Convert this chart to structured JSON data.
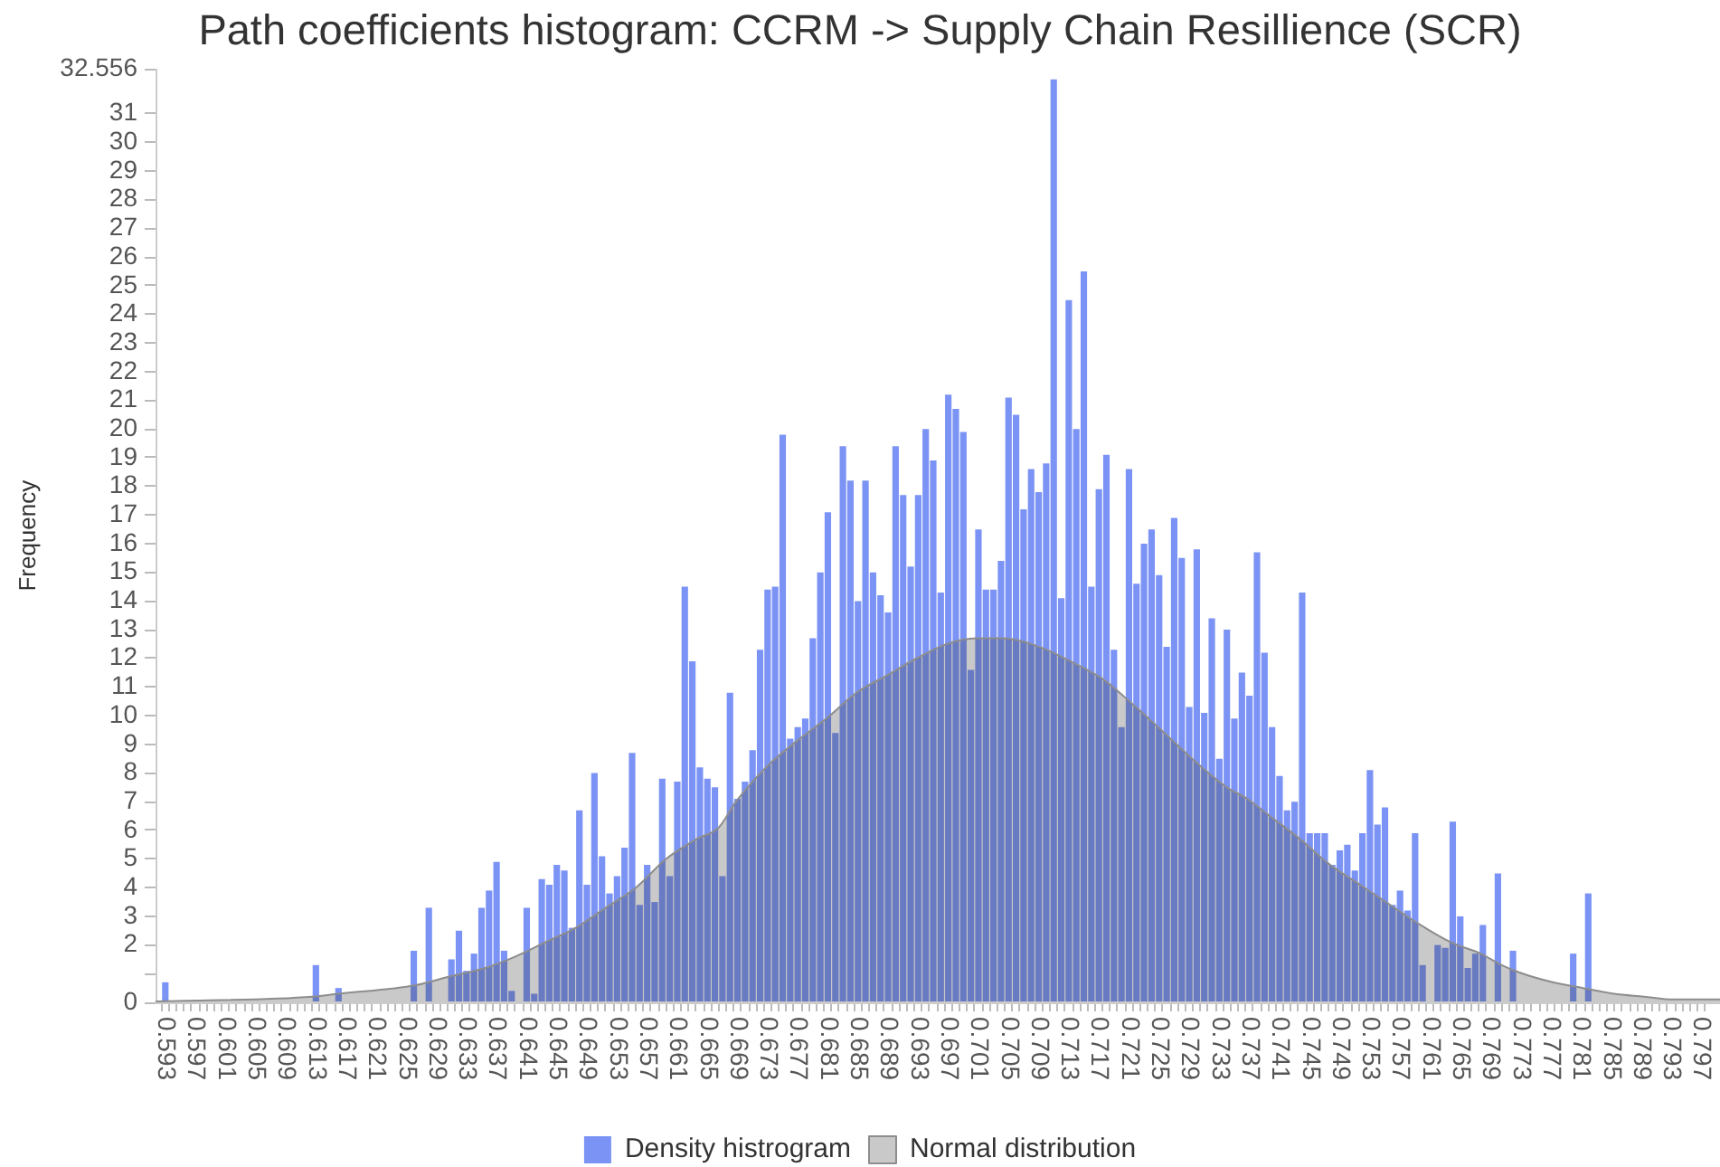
{
  "chart_data": {
    "type": "histogram",
    "title": "Path coefficients histogram: CCRM -> Supply Chain Resillience (SCR)",
    "ylabel": "Frequency",
    "bins": [
      0.5925,
      0.5935,
      0.5945,
      0.5955,
      0.5965,
      0.5975,
      0.5985,
      0.5995,
      0.6005,
      0.6015,
      0.6025,
      0.6035,
      0.6045,
      0.6055,
      0.6065,
      0.6075,
      0.6085,
      0.6095,
      0.6105,
      0.6115,
      0.6125,
      0.6135,
      0.6145,
      0.6155,
      0.6165,
      0.6175,
      0.6185,
      0.6195,
      0.6205,
      0.6215,
      0.6225,
      0.6235,
      0.6245,
      0.6255,
      0.6265,
      0.6275,
      0.6285,
      0.6295,
      0.6305,
      0.6315,
      0.6325,
      0.6335,
      0.6345,
      0.6355,
      0.6365,
      0.6375,
      0.6385,
      0.6395,
      0.6405,
      0.6415,
      0.6425,
      0.6435,
      0.6445,
      0.6455,
      0.6465,
      0.6475,
      0.6485,
      0.6495,
      0.6505,
      0.6515,
      0.6525,
      0.6535,
      0.6545,
      0.6555,
      0.6565,
      0.6575,
      0.6585,
      0.6595,
      0.6605,
      0.6615,
      0.6625,
      0.6635,
      0.6645,
      0.6655,
      0.6665,
      0.6675,
      0.6685,
      0.6695,
      0.6705,
      0.6715,
      0.6725,
      0.6735,
      0.6745,
      0.6755,
      0.6765,
      0.6775,
      0.6785,
      0.6795,
      0.6805,
      0.6815,
      0.6825,
      0.6835,
      0.6845,
      0.6855,
      0.6865,
      0.6875,
      0.6885,
      0.6895,
      0.6905,
      0.6915,
      0.6925,
      0.6935,
      0.6945,
      0.6955,
      0.6965,
      0.6975,
      0.6985,
      0.6995,
      0.7005,
      0.7015,
      0.7025,
      0.7035,
      0.7045,
      0.7055,
      0.7065,
      0.7075,
      0.7085,
      0.7095,
      0.7105,
      0.7115,
      0.7125,
      0.7135,
      0.7145,
      0.7155,
      0.7165,
      0.7175,
      0.7185,
      0.7195,
      0.7205,
      0.7215,
      0.7225,
      0.7235,
      0.7245,
      0.7255,
      0.7265,
      0.7275,
      0.7285,
      0.7295,
      0.7305,
      0.7315,
      0.7325,
      0.7335,
      0.7345,
      0.7355,
      0.7365,
      0.7375,
      0.7385,
      0.7395,
      0.7405,
      0.7415,
      0.7425,
      0.7435,
      0.7445,
      0.7455,
      0.7465,
      0.7475,
      0.7485,
      0.7495,
      0.7505,
      0.7515,
      0.7525,
      0.7535,
      0.7545,
      0.7555,
      0.7565,
      0.7575,
      0.7585,
      0.7595,
      0.7605,
      0.7615,
      0.7625,
      0.7635,
      0.7645,
      0.7655,
      0.7665,
      0.7675,
      0.7685,
      0.7695,
      0.7705,
      0.7715,
      0.7725,
      0.7735,
      0.7745,
      0.7755,
      0.7765,
      0.7775,
      0.7785,
      0.7795,
      0.7805,
      0.7815,
      0.7825,
      0.7835,
      0.7845,
      0.7855,
      0.7865,
      0.7875,
      0.7885,
      0.7895,
      0.7905,
      0.7915,
      0.7925,
      0.7935,
      0.7945,
      0.7955,
      0.7965,
      0.7975
    ],
    "xlim": [
      0.5917,
      0.7995
    ],
    "xticks": [
      0.593,
      {
        "value": 0.594,
        "label": null
      },
      {
        "value": 0.595,
        "label": null
      },
      {
        "value": 0.596,
        "label": null
      },
      0.597,
      {
        "value": 0.598,
        "label": null
      },
      {
        "value": 0.599,
        "label": null
      },
      {
        "value": 0.6,
        "label": null
      },
      0.601,
      {
        "value": 0.602,
        "label": null
      },
      {
        "value": 0.603,
        "label": null
      },
      {
        "value": 0.604,
        "label": null
      },
      0.605,
      {
        "value": 0.606,
        "label": null
      },
      {
        "value": 0.607,
        "label": null
      },
      {
        "value": 0.608,
        "label": null
      },
      0.609,
      {
        "value": 0.61,
        "label": null
      },
      {
        "value": 0.611,
        "label": null
      },
      {
        "value": 0.612,
        "label": null
      },
      0.613,
      {
        "value": 0.614,
        "label": null
      },
      {
        "value": 0.615,
        "label": null
      },
      {
        "value": 0.616,
        "label": null
      },
      0.617,
      {
        "value": 0.618,
        "label": null
      },
      {
        "value": 0.619,
        "label": null
      },
      {
        "value": 0.62,
        "label": null
      },
      0.621,
      {
        "value": 0.622,
        "label": null
      },
      {
        "value": 0.623,
        "label": null
      },
      {
        "value": 0.624,
        "label": null
      },
      0.625,
      {
        "value": 0.626,
        "label": null
      },
      {
        "value": 0.627,
        "label": null
      },
      {
        "value": 0.628,
        "label": null
      },
      0.629,
      {
        "value": 0.63,
        "label": null
      },
      {
        "value": 0.631,
        "label": null
      },
      {
        "value": 0.632,
        "label": null
      },
      0.633,
      {
        "value": 0.634,
        "label": null
      },
      {
        "value": 0.635,
        "label": null
      },
      {
        "value": 0.636,
        "label": null
      },
      0.637,
      {
        "value": 0.638,
        "label": null
      },
      {
        "value": 0.639,
        "label": null
      },
      {
        "value": 0.64,
        "label": null
      },
      0.641,
      {
        "value": 0.642,
        "label": null
      },
      {
        "value": 0.643,
        "label": null
      },
      {
        "value": 0.644,
        "label": null
      },
      0.645,
      {
        "value": 0.646,
        "label": null
      },
      {
        "value": 0.647,
        "label": null
      },
      {
        "value": 0.648,
        "label": null
      },
      0.649,
      {
        "value": 0.65,
        "label": null
      },
      {
        "value": 0.651,
        "label": null
      },
      {
        "value": 0.652,
        "label": null
      },
      0.653,
      {
        "value": 0.654,
        "label": null
      },
      {
        "value": 0.655,
        "label": null
      },
      {
        "value": 0.656,
        "label": null
      },
      0.657,
      {
        "value": 0.658,
        "label": null
      },
      {
        "value": 0.659,
        "label": null
      },
      {
        "value": 0.66,
        "label": null
      },
      0.661,
      {
        "value": 0.662,
        "label": null
      },
      {
        "value": 0.663,
        "label": null
      },
      {
        "value": 0.664,
        "label": null
      },
      0.665,
      {
        "value": 0.666,
        "label": null
      },
      {
        "value": 0.667,
        "label": null
      },
      {
        "value": 0.668,
        "label": null
      },
      0.669,
      {
        "value": 0.67,
        "label": null
      },
      {
        "value": 0.671,
        "label": null
      },
      {
        "value": 0.672,
        "label": null
      },
      0.673,
      {
        "value": 0.674,
        "label": null
      },
      {
        "value": 0.675,
        "label": null
      },
      {
        "value": 0.676,
        "label": null
      },
      0.677,
      {
        "value": 0.678,
        "label": null
      },
      {
        "value": 0.679,
        "label": null
      },
      {
        "value": 0.68,
        "label": null
      },
      0.681,
      {
        "value": 0.682,
        "label": null
      },
      {
        "value": 0.683,
        "label": null
      },
      {
        "value": 0.684,
        "label": null
      },
      0.685,
      {
        "value": 0.686,
        "label": null
      },
      {
        "value": 0.687,
        "label": null
      },
      {
        "value": 0.688,
        "label": null
      },
      0.689,
      {
        "value": 0.69,
        "label": null
      },
      {
        "value": 0.691,
        "label": null
      },
      {
        "value": 0.692,
        "label": null
      },
      0.693,
      {
        "value": 0.694,
        "label": null
      },
      {
        "value": 0.695,
        "label": null
      },
      {
        "value": 0.696,
        "label": null
      },
      0.697,
      {
        "value": 0.698,
        "label": null
      },
      {
        "value": 0.699,
        "label": null
      },
      {
        "value": 0.7,
        "label": null
      },
      0.701,
      {
        "value": 0.702,
        "label": null
      },
      {
        "value": 0.703,
        "label": null
      },
      {
        "value": 0.704,
        "label": null
      },
      0.705,
      {
        "value": 0.706,
        "label": null
      },
      {
        "value": 0.707,
        "label": null
      },
      {
        "value": 0.708,
        "label": null
      },
      0.709,
      {
        "value": 0.71,
        "label": null
      },
      {
        "value": 0.711,
        "label": null
      },
      {
        "value": 0.712,
        "label": null
      },
      0.713,
      {
        "value": 0.714,
        "label": null
      },
      {
        "value": 0.715,
        "label": null
      },
      {
        "value": 0.716,
        "label": null
      },
      0.717,
      {
        "value": 0.718,
        "label": null
      },
      {
        "value": 0.719,
        "label": null
      },
      {
        "value": 0.72,
        "label": null
      },
      0.721,
      {
        "value": 0.722,
        "label": null
      },
      {
        "value": 0.723,
        "label": null
      },
      {
        "value": 0.724,
        "label": null
      },
      0.725,
      {
        "value": 0.726,
        "label": null
      },
      {
        "value": 0.727,
        "label": null
      },
      {
        "value": 0.728,
        "label": null
      },
      0.729,
      {
        "value": 0.73,
        "label": null
      },
      {
        "value": 0.731,
        "label": null
      },
      {
        "value": 0.732,
        "label": null
      },
      0.733,
      {
        "value": 0.734,
        "label": null
      },
      {
        "value": 0.735,
        "label": null
      },
      {
        "value": 0.736,
        "label": null
      },
      0.737,
      {
        "value": 0.738,
        "label": null
      },
      {
        "value": 0.739,
        "label": null
      },
      {
        "value": 0.74,
        "label": null
      },
      0.741,
      {
        "value": 0.742,
        "label": null
      },
      {
        "value": 0.743,
        "label": null
      },
      {
        "value": 0.744,
        "label": null
      },
      0.745,
      {
        "value": 0.746,
        "label": null
      },
      {
        "value": 0.747,
        "label": null
      },
      {
        "value": 0.748,
        "label": null
      },
      0.749,
      {
        "value": 0.75,
        "label": null
      },
      {
        "value": 0.751,
        "label": null
      },
      {
        "value": 0.752,
        "label": null
      },
      0.753,
      {
        "value": 0.754,
        "label": null
      },
      {
        "value": 0.755,
        "label": null
      },
      {
        "value": 0.756,
        "label": null
      },
      0.757,
      {
        "value": 0.758,
        "label": null
      },
      {
        "value": 0.759,
        "label": null
      },
      {
        "value": 0.76,
        "label": null
      },
      0.761,
      {
        "value": 0.762,
        "label": null
      },
      {
        "value": 0.763,
        "label": null
      },
      {
        "value": 0.764,
        "label": null
      },
      0.765,
      {
        "value": 0.766,
        "label": null
      },
      {
        "value": 0.767,
        "label": null
      },
      {
        "value": 0.768,
        "label": null
      },
      0.769,
      {
        "value": 0.77,
        "label": null
      },
      {
        "value": 0.771,
        "label": null
      },
      {
        "value": 0.772,
        "label": null
      },
      0.773,
      {
        "value": 0.774,
        "label": null
      },
      {
        "value": 0.775,
        "label": null
      },
      {
        "value": 0.776,
        "label": null
      },
      0.777,
      {
        "value": 0.778,
        "label": null
      },
      {
        "value": 0.779,
        "label": null
      },
      {
        "value": 0.78,
        "label": null
      },
      0.781,
      {
        "value": 0.782,
        "label": null
      },
      {
        "value": 0.783,
        "label": null
      },
      {
        "value": 0.784,
        "label": null
      },
      0.785,
      {
        "value": 0.786,
        "label": null
      },
      {
        "value": 0.787,
        "label": null
      },
      {
        "value": 0.788,
        "label": null
      },
      0.789,
      {
        "value": 0.79,
        "label": null
      },
      {
        "value": 0.791,
        "label": null
      },
      {
        "value": 0.792,
        "label": null
      },
      0.793,
      {
        "value": 0.794,
        "label": null
      },
      {
        "value": 0.795,
        "label": null
      },
      {
        "value": 0.796,
        "label": null
      },
      0.797
    ],
    "ylim": [
      0,
      32.556
    ],
    "yticks": [
      0,
      {
        "value": 1,
        "label": null
      },
      2,
      3,
      4,
      5,
      6,
      7,
      8,
      9,
      10,
      11,
      12,
      13,
      14,
      15,
      16,
      17,
      18,
      19,
      20,
      21,
      22,
      23,
      24,
      25,
      26,
      27,
      28,
      29,
      30,
      31,
      32.556
    ],
    "legend": "bottom",
    "series": [
      {
        "name": "Density histrogram",
        "color": "#7b93f4",
        "values": [
          0.7,
          0,
          0,
          0,
          0,
          0,
          0,
          0,
          0,
          0,
          0,
          0,
          0,
          0,
          0,
          0,
          0,
          0,
          0,
          0,
          1.3,
          0,
          0,
          0.5,
          0,
          0,
          0,
          0,
          0,
          0,
          0,
          0,
          0,
          1.8,
          0,
          3.3,
          0,
          0,
          1.5,
          2.5,
          1.1,
          1.7,
          3.3,
          3.9,
          4.9,
          1.8,
          0.4,
          0,
          3.3,
          0.3,
          4.3,
          4.1,
          4.8,
          4.6,
          2.6,
          6.7,
          4.1,
          8.0,
          5.1,
          3.8,
          4.4,
          5.4,
          8.7,
          3.4,
          4.8,
          3.5,
          7.8,
          4.4,
          7.7,
          14.5,
          11.9,
          8.2,
          7.8,
          7.5,
          4.4,
          10.8,
          7.1,
          7.7,
          8.8,
          12.3,
          14.4,
          14.5,
          19.8,
          9.2,
          9.6,
          9.9,
          12.7,
          15.0,
          17.1,
          9.4,
          19.4,
          18.2,
          14.0,
          18.2,
          15.0,
          14.2,
          13.6,
          19.4,
          17.7,
          15.2,
          17.7,
          20.0,
          18.9,
          14.3,
          21.2,
          20.7,
          19.9,
          11.6,
          16.5,
          14.4,
          14.4,
          15.4,
          21.1,
          20.5,
          17.2,
          18.6,
          17.8,
          18.8,
          32.2,
          14.1,
          24.5,
          20.0,
          25.5,
          14.5,
          17.9,
          19.1,
          12.3,
          9.6,
          18.6,
          14.6,
          16.0,
          16.5,
          14.9,
          12.4,
          16.9,
          15.5,
          10.3,
          15.8,
          10.1,
          13.4,
          8.5,
          13.0,
          9.9,
          11.5,
          10.7,
          15.7,
          12.2,
          9.6,
          7.9,
          6.7,
          7.0,
          14.3,
          5.9,
          5.9,
          5.9,
          4.8,
          5.3,
          5.5,
          4.6,
          5.9,
          8.1,
          6.2,
          6.8,
          3.4,
          3.9,
          3.2,
          5.9,
          1.3,
          0,
          2.0,
          1.9,
          6.3,
          3.0,
          1.2,
          1.7,
          2.7,
          0,
          4.5,
          0,
          1.8,
          0,
          0,
          0,
          0,
          0,
          0,
          0,
          1.7,
          0,
          3.8,
          0,
          0,
          0,
          0,
          0,
          0,
          0,
          0,
          0,
          0,
          0,
          0,
          0,
          0,
          0
        ]
      },
      {
        "name": "Normal distribution",
        "type": "area",
        "color": "#c9c9c9",
        "x": [
          0.5917,
          0.6126,
          0.6159,
          0.6263,
          0.6307,
          0.6355,
          0.6395,
          0.6435,
          0.6475,
          0.6515,
          0.6555,
          0.6595,
          0.6636,
          0.6665,
          0.6688,
          0.6728,
          0.6768,
          0.6808,
          0.6848,
          0.6888,
          0.6928,
          0.6968,
          0.7008,
          0.7041,
          0.7091,
          0.7132,
          0.7174,
          0.7215,
          0.7257,
          0.7298,
          0.734,
          0.7367,
          0.7397,
          0.7437,
          0.7477,
          0.7517,
          0.7557,
          0.7597,
          0.7637,
          0.7677,
          0.7705,
          0.7733,
          0.7773,
          0.7813,
          0.7854,
          0.7894,
          0.7933,
          0.7995
        ],
        "values": [
          0.03,
          0.2,
          0.3,
          0.6,
          0.9,
          1.2,
          1.6,
          2.1,
          2.6,
          3.3,
          4.0,
          5.0,
          5.7,
          6.1,
          7.0,
          8.2,
          9.1,
          9.9,
          10.8,
          11.4,
          12.0,
          12.5,
          12.7,
          12.7,
          12.4,
          11.9,
          11.3,
          10.4,
          9.4,
          8.4,
          7.5,
          7.1,
          6.5,
          5.7,
          4.8,
          4.1,
          3.4,
          2.7,
          2.1,
          1.7,
          1.3,
          1.0,
          0.7,
          0.5,
          0.3,
          0.2,
          0.1,
          0.1
        ]
      }
    ]
  }
}
